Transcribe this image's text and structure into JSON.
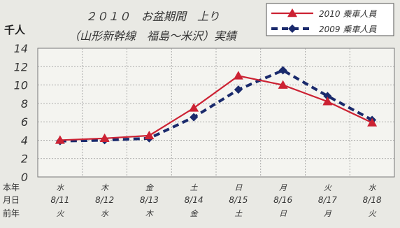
{
  "chart_data": {
    "type": "line",
    "title_line1": "２０１０　お盆期間　上り",
    "title_line2": "（山形新幹線　福島～米沢）実績",
    "ylabel": "千人",
    "ylim": [
      0,
      14
    ],
    "yticks": [
      "0",
      "2",
      "4",
      "6",
      "8",
      "10",
      "12",
      "14"
    ],
    "grid": true,
    "legend_position": "top-right",
    "row_labels": [
      "本年",
      "月日",
      "前年"
    ],
    "categories": [
      {
        "weekday": "水",
        "date": "8/11",
        "prev_weekday": "火"
      },
      {
        "weekday": "木",
        "date": "8/12",
        "prev_weekday": "水"
      },
      {
        "weekday": "金",
        "date": "8/13",
        "prev_weekday": "木"
      },
      {
        "weekday": "土",
        "date": "8/14",
        "prev_weekday": "金"
      },
      {
        "weekday": "日",
        "date": "8/15",
        "prev_weekday": "土"
      },
      {
        "weekday": "月",
        "date": "8/16",
        "prev_weekday": "日"
      },
      {
        "weekday": "火",
        "date": "8/17",
        "prev_weekday": "月"
      },
      {
        "weekday": "水",
        "date": "8/18",
        "prev_weekday": "火"
      }
    ],
    "series": [
      {
        "name": "2010 乗車人員",
        "color": "#cc2233",
        "style": "solid",
        "marker": "triangle",
        "values": [
          4.0,
          4.2,
          4.5,
          7.5,
          11.0,
          10.0,
          8.2,
          5.9
        ]
      },
      {
        "name": "2009 乗車人員",
        "color": "#1a2a6c",
        "style": "dashed",
        "marker": "diamond",
        "values": [
          3.9,
          4.0,
          4.2,
          6.5,
          9.5,
          11.6,
          8.8,
          6.2
        ]
      }
    ]
  }
}
